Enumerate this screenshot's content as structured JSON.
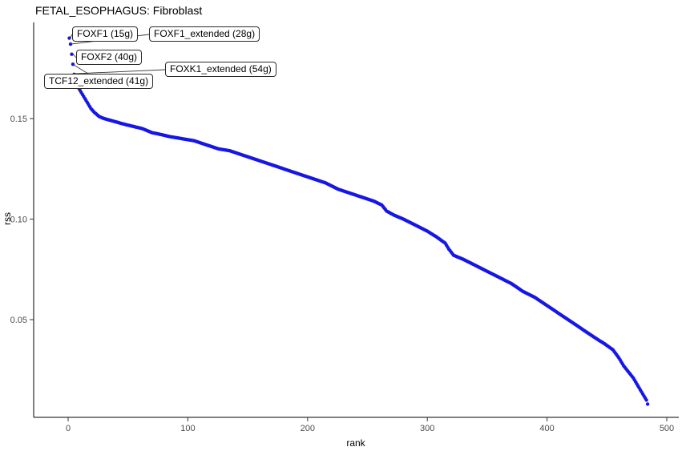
{
  "chart_data": {
    "type": "scatter",
    "title": "FETAL_ESOPHAGUS: Fibroblast",
    "xlabel": "rank",
    "ylabel": "rss",
    "x_ticks": [
      0,
      100,
      200,
      300,
      400,
      500
    ],
    "y_ticks": [
      0.05,
      0.1,
      0.15
    ],
    "xlim": [
      -29,
      510
    ],
    "ylim": [
      0.001,
      0.198
    ],
    "grid": false,
    "legend": "none",
    "point_color": "#1717E3",
    "n_points": 484,
    "anchors": [
      [
        1,
        0.19
      ],
      [
        2,
        0.187
      ],
      [
        3,
        0.182
      ],
      [
        4,
        0.177
      ],
      [
        5,
        0.172
      ],
      [
        7,
        0.168
      ],
      [
        9,
        0.165
      ],
      [
        11,
        0.163
      ],
      [
        13,
        0.161
      ],
      [
        16,
        0.158
      ],
      [
        19,
        0.155
      ],
      [
        22,
        0.153
      ],
      [
        26,
        0.151
      ],
      [
        30,
        0.15
      ],
      [
        36,
        0.149
      ],
      [
        42,
        0.148
      ],
      [
        48,
        0.147
      ],
      [
        55,
        0.146
      ],
      [
        62,
        0.145
      ],
      [
        70,
        0.143
      ],
      [
        78,
        0.142
      ],
      [
        85,
        0.141
      ],
      [
        95,
        0.14
      ],
      [
        105,
        0.139
      ],
      [
        115,
        0.137
      ],
      [
        125,
        0.135
      ],
      [
        135,
        0.134
      ],
      [
        145,
        0.132
      ],
      [
        155,
        0.13
      ],
      [
        165,
        0.128
      ],
      [
        175,
        0.126
      ],
      [
        185,
        0.124
      ],
      [
        195,
        0.122
      ],
      [
        205,
        0.12
      ],
      [
        215,
        0.118
      ],
      [
        225,
        0.115
      ],
      [
        235,
        0.113
      ],
      [
        245,
        0.111
      ],
      [
        255,
        0.109
      ],
      [
        262,
        0.107
      ],
      [
        266,
        0.104
      ],
      [
        272,
        0.102
      ],
      [
        280,
        0.1
      ],
      [
        290,
        0.097
      ],
      [
        300,
        0.094
      ],
      [
        308,
        0.091
      ],
      [
        315,
        0.088
      ],
      [
        318,
        0.085
      ],
      [
        322,
        0.082
      ],
      [
        330,
        0.08
      ],
      [
        340,
        0.077
      ],
      [
        350,
        0.074
      ],
      [
        360,
        0.071
      ],
      [
        370,
        0.068
      ],
      [
        380,
        0.064
      ],
      [
        390,
        0.061
      ],
      [
        400,
        0.057
      ],
      [
        410,
        0.053
      ],
      [
        420,
        0.049
      ],
      [
        430,
        0.045
      ],
      [
        440,
        0.041
      ],
      [
        448,
        0.038
      ],
      [
        455,
        0.035
      ],
      [
        460,
        0.031
      ],
      [
        464,
        0.027
      ],
      [
        468,
        0.024
      ],
      [
        472,
        0.021
      ],
      [
        476,
        0.017
      ],
      [
        480,
        0.013
      ],
      [
        483,
        0.01
      ],
      [
        484,
        0.008
      ]
    ],
    "labeled_points": [
      {
        "text": "FOXF1 (15g)",
        "rank": 1,
        "rss": 0.19
      },
      {
        "text": "FOXF1_extended (28g)",
        "rank": 2,
        "rss": 0.187
      },
      {
        "text": "FOXF2 (40g)",
        "rank": 3,
        "rss": 0.182
      },
      {
        "text": "TCF12_extended (41g)",
        "rank": 4,
        "rss": 0.177
      },
      {
        "text": "FOXK1_extended (54g)",
        "rank": 5,
        "rss": 0.172
      }
    ]
  }
}
